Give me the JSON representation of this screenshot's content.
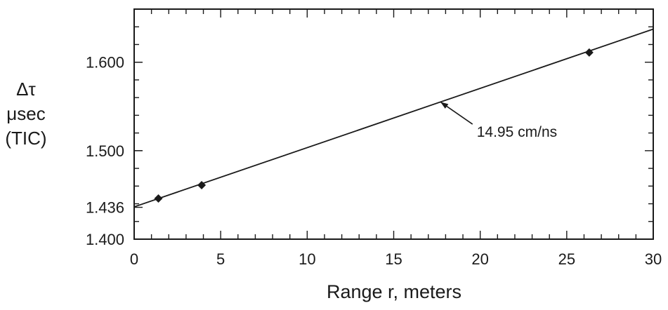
{
  "chart_data": {
    "type": "line",
    "xlabel": "Range r, meters",
    "ylabel": [
      "Δτ",
      "μsec",
      "(TIC)"
    ],
    "xlim": [
      0,
      30
    ],
    "ylim": [
      1.4,
      1.66
    ],
    "x_ticks": [
      0,
      5,
      10,
      15,
      20,
      25,
      30
    ],
    "y_ticks": [
      {
        "value": 1.4,
        "label": "1.400"
      },
      {
        "value": 1.436,
        "label": "1.436"
      },
      {
        "value": 1.5,
        "label": "1.500"
      },
      {
        "value": 1.6,
        "label": "1.600"
      }
    ],
    "grid": false,
    "series": [
      {
        "kind": "markers",
        "marker": "diamond",
        "x": [
          1.4,
          3.9,
          26.3
        ],
        "y": [
          1.446,
          1.461,
          1.611
        ]
      },
      {
        "kind": "fit-line",
        "x": [
          0,
          30
        ],
        "y": [
          1.4365,
          1.6374
        ]
      }
    ],
    "annotations": [
      {
        "text": "14.95 cm/ns",
        "arrow_to": {
          "x": 17.7,
          "y": 1.5551
        },
        "text_at": {
          "x": 19.8,
          "y": 1.522
        }
      }
    ]
  }
}
